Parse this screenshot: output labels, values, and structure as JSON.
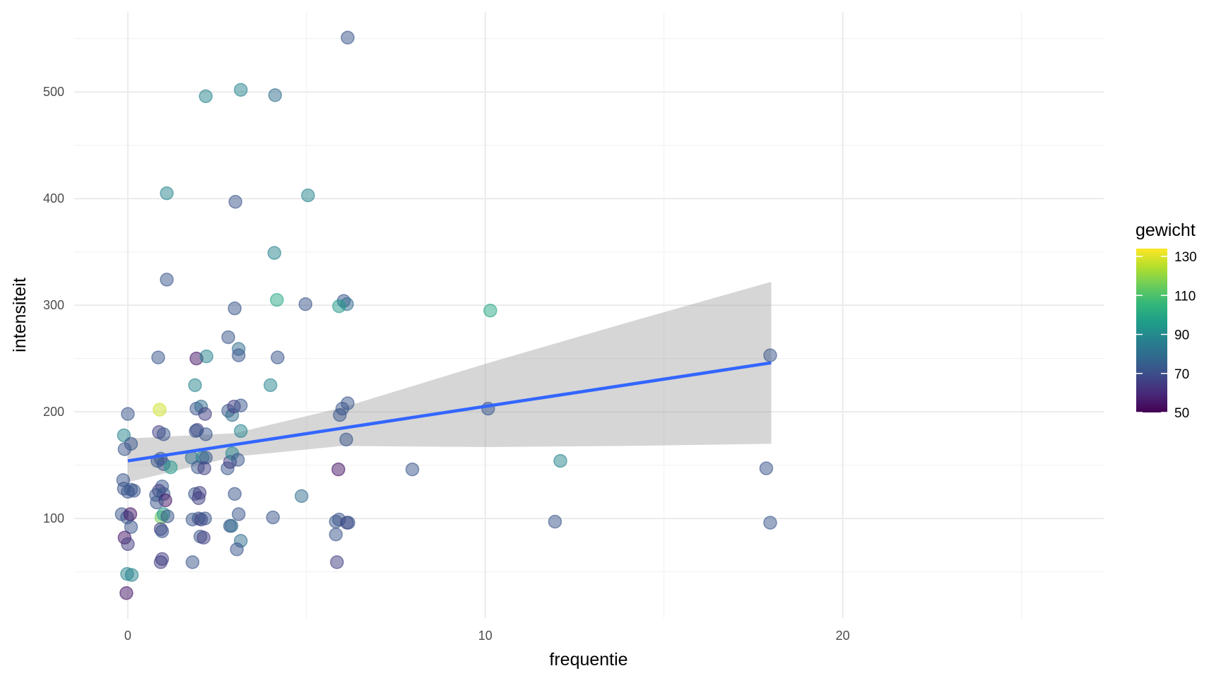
{
  "chart_data": {
    "type": "scatter",
    "x_label": "frequentie",
    "y_label": "intensiteit",
    "xlim": [
      -1.5,
      27.3
    ],
    "ylim": [
      6,
      575
    ],
    "xticks": [
      0,
      10,
      20
    ],
    "yticks": [
      100,
      200,
      300,
      400,
      500
    ],
    "x_minor_grid": [
      5,
      15,
      25
    ],
    "y_minor_grid": [
      50,
      150,
      250,
      350,
      450,
      550
    ],
    "grid": true,
    "series": [
      {
        "x": [
          6.15,
          2.18,
          3.16,
          4.12,
          1.09,
          3.01,
          5.04,
          4.1,
          1.09,
          4.17,
          4.97,
          2.99,
          6.04,
          6.13,
          5.91,
          10.14,
          2.81,
          3.1,
          3.1,
          0.85,
          1.92,
          2.2,
          4.19,
          17.97,
          1.88,
          3.99,
          0.89,
          0,
          1.92,
          2.05,
          2.16,
          2.81,
          2.92,
          2.97,
          3.16,
          6.15,
          6.0,
          5.93,
          10.08,
          -0.11,
          0.87,
          1.0,
          1.94,
          1.9,
          2.18,
          3.16,
          6.11,
          0.09,
          -0.09,
          0.92,
          0.83,
          1.0,
          1.2,
          1.79,
          2.09,
          2.18,
          1.96,
          2.14,
          2.79,
          2.86,
          2.92,
          3.08,
          5.89,
          7.96,
          12.1,
          17.86,
          -0.13,
          -0.11,
          0.09,
          0.17,
          0,
          0.96,
          0.87,
          1.0,
          0.79,
          1.05,
          0.81,
          1.88,
          2.01,
          1.98,
          2.99,
          4.86,
          -0.17,
          -0.02,
          0.07,
          0.94,
          1.0,
          1.11,
          1.81,
          1.98,
          2.05,
          2.16,
          3.1,
          4.06,
          5.82,
          5.91,
          6.13,
          6.17,
          11.95,
          17.97,
          0.09,
          2.86,
          2.9,
          0.92,
          0.96,
          -0.09,
          2.03,
          2.12,
          5.82,
          0,
          3.16,
          3.05,
          0.96,
          0.92,
          1.81,
          5.85,
          -0.02,
          0.11,
          -0.04
        ],
        "y": [
          551,
          496,
          502,
          497,
          405,
          397,
          403,
          349,
          324,
          305,
          301,
          297,
          304,
          301,
          299,
          295,
          270,
          259,
          253,
          251,
          250,
          252,
          251,
          253,
          225,
          225,
          202,
          198,
          203,
          205,
          198,
          201,
          197,
          205,
          206,
          208,
          203,
          197,
          203,
          178,
          181,
          179,
          183,
          182,
          179,
          182,
          174,
          170,
          165,
          156,
          154,
          151,
          148,
          157,
          157,
          157,
          148,
          147,
          147,
          153,
          161,
          155,
          146,
          146,
          154,
          147,
          136,
          128,
          127,
          126,
          125,
          130,
          126,
          123,
          122,
          117,
          115,
          123,
          124,
          119,
          123,
          121,
          104,
          101,
          104,
          101,
          104,
          102,
          99,
          100,
          99,
          100,
          104,
          101,
          97,
          99,
          96,
          96,
          97,
          96,
          92,
          93,
          93,
          90,
          88,
          82,
          83,
          82,
          85,
          76,
          79,
          71,
          62,
          59,
          59,
          59,
          48,
          47,
          30
        ],
        "gewicht": [
          72,
          88,
          88,
          80,
          88,
          72,
          88,
          88,
          72,
          100,
          72,
          72,
          72,
          80,
          95,
          100,
          72,
          80,
          72,
          72,
          55,
          88,
          72,
          72,
          88,
          88,
          128,
          72,
          72,
          80,
          65,
          72,
          80,
          65,
          72,
          72,
          72,
          72,
          72,
          88,
          65,
          72,
          65,
          72,
          72,
          88,
          72,
          72,
          72,
          72,
          72,
          72,
          95,
          80,
          88,
          72,
          72,
          65,
          72,
          65,
          88,
          72,
          55,
          72,
          88,
          72,
          72,
          72,
          72,
          72,
          72,
          72,
          65,
          72,
          72,
          55,
          72,
          72,
          65,
          65,
          72,
          80,
          72,
          72,
          55,
          115,
          95,
          72,
          72,
          72,
          65,
          72,
          72,
          72,
          72,
          72,
          65,
          72,
          72,
          72,
          72,
          72,
          80,
          65,
          72,
          55,
          72,
          65,
          72,
          65,
          80,
          72,
          65,
          65,
          72,
          65,
          88,
          88,
          55
        ]
      }
    ],
    "fit": {
      "color": "#3366ff",
      "x": [
        0,
        18
      ],
      "y": [
        154,
        246
      ]
    },
    "band": {
      "color": "#999999",
      "x": [
        0,
        3,
        6,
        10,
        14,
        18
      ],
      "lower": [
        134,
        158,
        168,
        167,
        168,
        170
      ],
      "upper": [
        175,
        180,
        204,
        245,
        284,
        322
      ]
    },
    "colorbar": {
      "title": "gewicht",
      "lim": [
        50,
        134
      ],
      "ticks": [
        50,
        70,
        90,
        110,
        130
      ],
      "colormap": "viridis"
    }
  }
}
